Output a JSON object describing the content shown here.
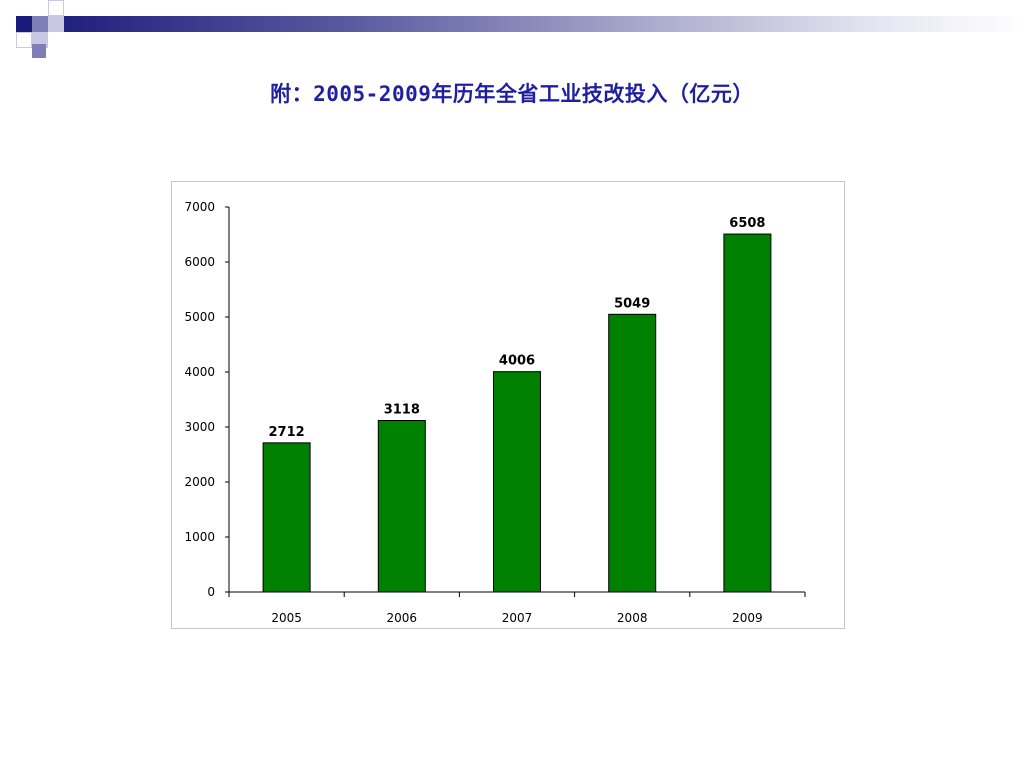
{
  "slide": {
    "title": "附：2005-2009年历年全省工业技改投入（亿元）"
  },
  "colors": {
    "title": "#1f1fa0",
    "bar": "#008000",
    "decor_dark": "#1a1a7a"
  },
  "chart_data": {
    "type": "bar",
    "title": "",
    "xlabel": "",
    "ylabel": "",
    "categories": [
      "2005",
      "2006",
      "2007",
      "2008",
      "2009"
    ],
    "values": [
      2712,
      3118,
      4006,
      5049,
      6508
    ],
    "data_labels": [
      "2712",
      "3118",
      "4006",
      "5049",
      "6508"
    ],
    "ylim": [
      0,
      7000
    ],
    "yticks": [
      0,
      1000,
      2000,
      3000,
      4000,
      5000,
      6000,
      7000
    ],
    "ytick_labels": [
      "0",
      "1000",
      "2000",
      "3000",
      "4000",
      "5000",
      "6000",
      "7000"
    ],
    "grid": false,
    "legend": "none",
    "bar_color": "#008000"
  }
}
